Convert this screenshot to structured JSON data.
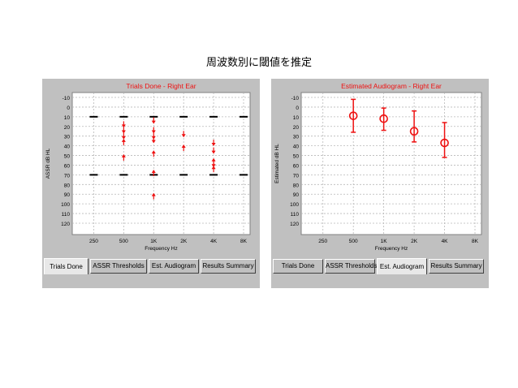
{
  "slide": {
    "title": "周波数別に閾値を推定"
  },
  "chart_data": [
    {
      "type": "scatter",
      "title": "Trials Done - Right Ear",
      "xlabel": "Frequency Hz",
      "ylabel": "ASSR dB HL",
      "x_categories": [
        "250",
        "500",
        "1K",
        "2K",
        "4K",
        "8K"
      ],
      "y_ticks": [
        -10,
        0,
        10,
        20,
        30,
        40,
        50,
        60,
        70,
        80,
        90,
        100,
        110,
        120
      ],
      "ylim": [
        -10,
        120
      ],
      "y_inverted": true,
      "grid": true,
      "series": [
        {
          "marker": "range-limit",
          "points": [
            {
              "x": "250",
              "y": 10
            },
            {
              "x": "500",
              "y": 10
            },
            {
              "x": "1K",
              "y": 10
            },
            {
              "x": "2K",
              "y": 10
            },
            {
              "x": "4K",
              "y": 10
            },
            {
              "x": "8K",
              "y": 10
            },
            {
              "x": "250",
              "y": 70
            },
            {
              "x": "500",
              "y": 70
            },
            {
              "x": "1K",
              "y": 70
            },
            {
              "x": "2K",
              "y": 70
            },
            {
              "x": "4K",
              "y": 70
            },
            {
              "x": "8K",
              "y": 70
            }
          ]
        },
        {
          "marker": "arrow-down",
          "points": [
            {
              "x": "500",
              "y": 18
            },
            {
              "x": "500",
              "y": 24
            },
            {
              "x": "500",
              "y": 30
            },
            {
              "x": "1K",
              "y": 14
            },
            {
              "x": "1K",
              "y": 24
            },
            {
              "x": "1K",
              "y": 30
            },
            {
              "x": "1K",
              "y": 34
            },
            {
              "x": "2K",
              "y": 28
            },
            {
              "x": "4K",
              "y": 37
            },
            {
              "x": "4K",
              "y": 45
            },
            {
              "x": "4K",
              "y": 59
            }
          ]
        },
        {
          "marker": "arrow-up",
          "points": [
            {
              "x": "500",
              "y": 36
            },
            {
              "x": "500",
              "y": 52
            },
            {
              "x": "1K",
              "y": 48
            },
            {
              "x": "1K",
              "y": 68
            },
            {
              "x": "1K",
              "y": 92
            },
            {
              "x": "2K",
              "y": 42
            },
            {
              "x": "4K",
              "y": 56
            },
            {
              "x": "4K",
              "y": 64
            }
          ]
        }
      ]
    },
    {
      "type": "scatter",
      "title": "Estimated Audiogram - Right Ear",
      "xlabel": "Frequency Hz",
      "ylabel": "Estimated dB HL",
      "x_categories": [
        "250",
        "500",
        "1K",
        "2K",
        "4K",
        "8K"
      ],
      "y_ticks": [
        -10,
        0,
        10,
        20,
        30,
        40,
        50,
        60,
        70,
        80,
        90,
        100,
        110,
        120
      ],
      "ylim": [
        -10,
        120
      ],
      "y_inverted": true,
      "grid": true,
      "series": [
        {
          "marker": "circle-with-errorbar",
          "points": [
            {
              "x": "500",
              "y": 9,
              "low": -8,
              "high": 26
            },
            {
              "x": "1K",
              "y": 12,
              "low": 1,
              "high": 24
            },
            {
              "x": "2K",
              "y": 25,
              "low": 4,
              "high": 36
            },
            {
              "x": "4K",
              "y": 37,
              "low": 16,
              "high": 52
            }
          ]
        }
      ]
    }
  ],
  "left_tabs": [
    {
      "label": "Trials Done",
      "active": true
    },
    {
      "label": "ASSR Thresholds",
      "active": false
    },
    {
      "label": "Est. Audiogram",
      "active": false
    },
    {
      "label": "Results Summary",
      "active": false
    }
  ],
  "right_tabs": [
    {
      "label": "Trials Done",
      "active": false
    },
    {
      "label": "ASSR Thresholds",
      "active": false
    },
    {
      "label": "Est. Audiogram",
      "active": true
    },
    {
      "label": "Results Summary",
      "active": false
    }
  ],
  "colors": {
    "data": "#ee1111",
    "limit": "#000000",
    "grid": "#b8b8b8",
    "panel": "#c0c0c0",
    "plot": "#ffffff"
  }
}
